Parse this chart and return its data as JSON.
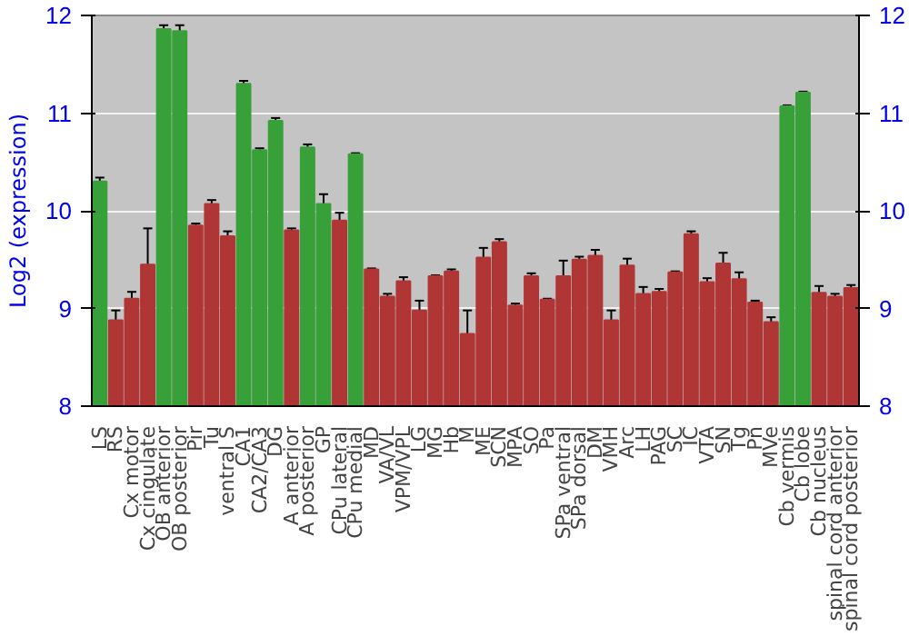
{
  "chart_data": {
    "type": "bar",
    "ylabel": "Log2 (expression)",
    "categories": [
      "LS",
      "RS",
      "Cx motor",
      "Cx cingulate",
      "OB anterior",
      "OB posterior",
      "Pir",
      "Tu",
      "ventral S",
      "CA1",
      "CA2/CA3",
      "DG",
      "A anterior",
      "A posterior",
      "GP",
      "CPu lateral",
      "CPu medial",
      "MD",
      "VA/VL",
      "VPM/VPL",
      "LG",
      "MG",
      "Hb",
      "M",
      "ME",
      "SCN",
      "MPA",
      "SO",
      "Pa",
      "SPa ventral",
      "SPa dorsal",
      "DM",
      "VMH",
      "Arc",
      "LH",
      "PAG",
      "SC",
      "IC",
      "VTA",
      "SN",
      "Tg",
      "Pn",
      "MVe",
      "Cb vermis",
      "Cb lobe",
      "Cb nucleus",
      "spinal cord anterior",
      "spinal cord posterior"
    ],
    "values": [
      10.3,
      8.88,
      9.1,
      9.45,
      11.86,
      11.84,
      9.85,
      10.07,
      9.74,
      11.3,
      10.62,
      10.92,
      9.8,
      10.65,
      10.07,
      9.9,
      10.58,
      9.4,
      9.12,
      9.28,
      8.98,
      9.33,
      9.38,
      8.74,
      9.52,
      9.68,
      9.03,
      9.33,
      9.09,
      9.33,
      9.5,
      9.54,
      8.88,
      9.44,
      9.15,
      9.17,
      9.37,
      9.76,
      9.27,
      9.46,
      9.3,
      9.06,
      8.86,
      11.07,
      11.21,
      9.16,
      9.12,
      9.21
    ],
    "errors": [
      0.04,
      0.1,
      0.07,
      0.37,
      0.04,
      0.06,
      0.02,
      0.04,
      0.05,
      0.03,
      0.02,
      0.03,
      0.02,
      0.03,
      0.1,
      0.08,
      0.01,
      0.01,
      0.03,
      0.04,
      0.1,
      0.01,
      0.02,
      0.24,
      0.1,
      0.03,
      0.02,
      0.03,
      0.01,
      0.16,
      0.03,
      0.06,
      0.1,
      0.07,
      0.07,
      0.03,
      0.01,
      0.03,
      0.04,
      0.11,
      0.07,
      0.02,
      0.05,
      0.01,
      0.01,
      0.07,
      0.03,
      0.03
    ],
    "colors": [
      "#38a038",
      "#b03535",
      "#b03535",
      "#b03535",
      "#38a038",
      "#38a038",
      "#b03535",
      "#b03535",
      "#b03535",
      "#38a038",
      "#38a038",
      "#38a038",
      "#b03535",
      "#38a038",
      "#38a038",
      "#b03535",
      "#38a038",
      "#b03535",
      "#b03535",
      "#b03535",
      "#b03535",
      "#b03535",
      "#b03535",
      "#b03535",
      "#b03535",
      "#b03535",
      "#b03535",
      "#b03535",
      "#b03535",
      "#b03535",
      "#b03535",
      "#b03535",
      "#b03535",
      "#b03535",
      "#b03535",
      "#b03535",
      "#b03535",
      "#b03535",
      "#b03535",
      "#b03535",
      "#b03535",
      "#b03535",
      "#b03535",
      "#38a038",
      "#38a038",
      "#b03535",
      "#b03535",
      "#b03535"
    ],
    "ylim": [
      8,
      12
    ],
    "yticks": [
      8,
      9,
      10,
      11,
      12
    ],
    "y2lim": [
      8,
      12
    ],
    "y2ticks": [
      8,
      9,
      10,
      11,
      12
    ],
    "grid": "y"
  }
}
